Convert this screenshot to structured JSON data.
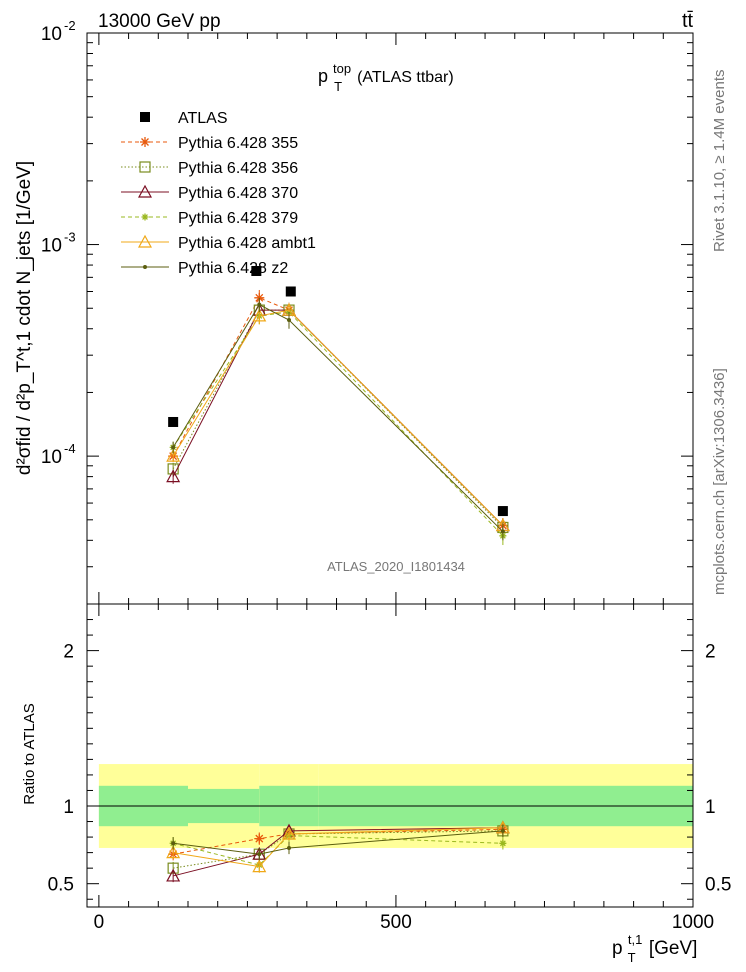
{
  "header": {
    "left": "13000 GeV pp",
    "right": "tt̄"
  },
  "side": {
    "top": "Rivet 3.1.10, ≥ 1.4M events",
    "bottom": "mcplots.cern.ch [arXiv:1306.3436]"
  },
  "chart_data": [
    {
      "type": "scatter",
      "title_main": "p",
      "title_sup": "top",
      "title_sub": "T",
      "title_rest": " (ATLAS ttbar)",
      "ylabel": "d²σfid / d²p_T^t,1 cdot N_jets  [1/GeV]",
      "yscale": "log",
      "ylim": [
        2e-05,
        0.01
      ],
      "xlim": [
        -20,
        1000
      ],
      "yticks": [
        {
          "v": 0.0001,
          "m": "10",
          "e": "-4"
        },
        {
          "v": 0.001,
          "m": "10",
          "e": "-3"
        },
        {
          "v": 0.01,
          "m": "10",
          "e": "-2"
        }
      ],
      "watermark": "ATLAS_2020_I1801434",
      "legend_position": "top-left",
      "bins": [
        [
          0,
          150
        ],
        [
          150,
          270
        ],
        [
          270,
          370
        ],
        [
          370,
          1000
        ]
      ],
      "x": [
        125,
        270,
        320,
        680
      ],
      "data_marker_x": [
        125,
        265,
        323,
        680
      ],
      "series": [
        {
          "name": "ATLAS",
          "color": "#000000",
          "marker": "square-filled",
          "line": "none",
          "values": [
            0.000145,
            0.00075,
            0.0006,
            5.5e-05
          ]
        },
        {
          "name": "Pythia 6.428 355",
          "color": "#e8590c",
          "marker": "star",
          "line": "dashed",
          "values": [
            0.0001,
            0.00056,
            0.00049,
            4.7e-05
          ],
          "err": [
            6e-06,
            5e-05,
            4e-05,
            4e-06
          ]
        },
        {
          "name": "Pythia 6.428 356",
          "color": "#7a8c1e",
          "marker": "square-open",
          "line": "dotted",
          "values": [
            8.7e-05,
            0.00049,
            0.00049,
            4.6e-05
          ],
          "err": [
            6e-06,
            4e-05,
            4e-05,
            4e-06
          ]
        },
        {
          "name": "Pythia 6.428 370",
          "color": "#7b0f23",
          "marker": "triangle-open",
          "line": "solid",
          "values": [
            8e-05,
            0.00049,
            0.00049,
            4.7e-05
          ],
          "err": [
            6e-06,
            4e-05,
            4e-05,
            4e-06
          ]
        },
        {
          "name": "Pythia 6.428 379",
          "color": "#9ab820",
          "marker": "star-small",
          "line": "dashed",
          "values": [
            0.00011,
            0.00046,
            0.00048,
            4.2e-05
          ],
          "err": [
            7e-06,
            4e-05,
            4e-05,
            4e-06
          ]
        },
        {
          "name": "Pythia 6.428 ambt1",
          "color": "#f0a818",
          "marker": "triangle-open",
          "line": "solid",
          "values": [
            0.0001,
            0.00046,
            0.00049,
            4.7e-05
          ],
          "err": [
            6e-06,
            4e-05,
            4e-05,
            4e-06
          ]
        },
        {
          "name": "Pythia 6.428 z2",
          "color": "#5b5e0f",
          "marker": "dot",
          "line": "solid",
          "values": [
            0.00011,
            0.00052,
            0.00044,
            4.4e-05
          ],
          "err": [
            7e-06,
            4e-05,
            4e-05,
            4e-06
          ]
        }
      ]
    },
    {
      "type": "scatter",
      "ylabel": "Ratio to ATLAS",
      "xlabel_main": "p",
      "xlabel_sup": "t,1",
      "xlabel_sub": "T",
      "xlabel_rest": " [GeV]",
      "xlim": [
        -20,
        1000
      ],
      "ylim": [
        0.35,
        2.3
      ],
      "xticks": [
        "0",
        "500",
        "1000"
      ],
      "xtick_values": [
        0,
        500,
        1000
      ],
      "yticks": [
        "0.5",
        "1",
        "2"
      ],
      "ytick_values": [
        0.5,
        1,
        2
      ],
      "band_inner": [
        0.13,
        0.11,
        0.13,
        0.13
      ],
      "band_outer": [
        0.27,
        0.27,
        0.27,
        0.27
      ],
      "series": [
        {
          "name": "Pythia 6.428 355",
          "values": [
            0.69,
            0.79,
            0.82,
            0.85
          ]
        },
        {
          "name": "Pythia 6.428 356",
          "values": [
            0.6,
            0.69,
            0.82,
            0.84
          ]
        },
        {
          "name": "Pythia 6.428 370",
          "values": [
            0.55,
            0.69,
            0.84,
            0.86
          ]
        },
        {
          "name": "Pythia 6.428 379",
          "values": [
            0.76,
            0.62,
            0.81,
            0.76
          ]
        },
        {
          "name": "Pythia 6.428 ambt1",
          "values": [
            0.7,
            0.61,
            0.82,
            0.86
          ]
        },
        {
          "name": "Pythia 6.428 z2",
          "values": [
            0.76,
            0.69,
            0.73,
            0.84
          ]
        }
      ]
    }
  ]
}
